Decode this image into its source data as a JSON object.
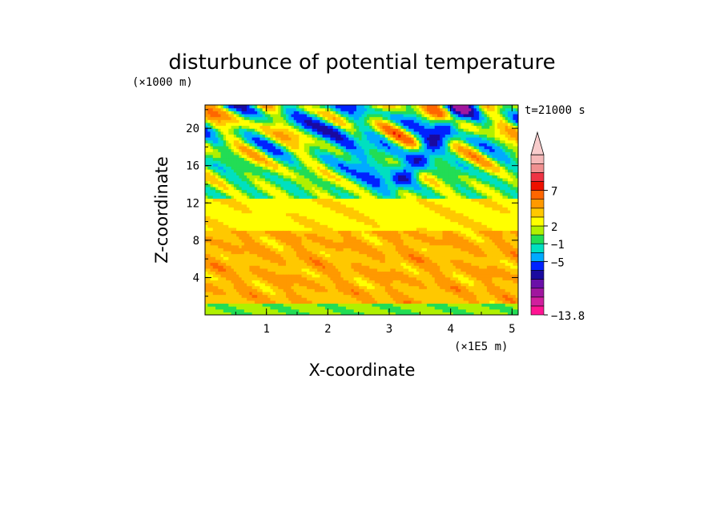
{
  "chart_data": {
    "type": "heatmap",
    "title": "disturbunce of potential temperature",
    "xlabel": "X-coordinate",
    "ylabel": "Z-coordinate",
    "x_unit": "(×1E5 m)",
    "y_unit": "(×1000 m)",
    "time_label": "t=21000 s",
    "xlim": [
      0,
      5.1
    ],
    "ylim": [
      0,
      22.5
    ],
    "x_ticks": [
      "1",
      "2",
      "3",
      "4",
      "5"
    ],
    "y_ticks": [
      "4",
      "8",
      "12",
      "16",
      "20"
    ],
    "colorbar": {
      "labels": [
        "7",
        "2",
        "−1",
        "−5",
        "−13.8"
      ],
      "colors": [
        "#ff1493",
        "#d01f9e",
        "#a0169e",
        "#6a0fa8",
        "#1a0aa0",
        "#0022ff",
        "#00aaff",
        "#00e0c0",
        "#22dd55",
        "#b0f000",
        "#ffff00",
        "#ffc800",
        "#ff9900",
        "#ff6600",
        "#ee1100",
        "#ee3344",
        "#f09090",
        "#f5b8b8"
      ],
      "extend_max": true
    }
  }
}
